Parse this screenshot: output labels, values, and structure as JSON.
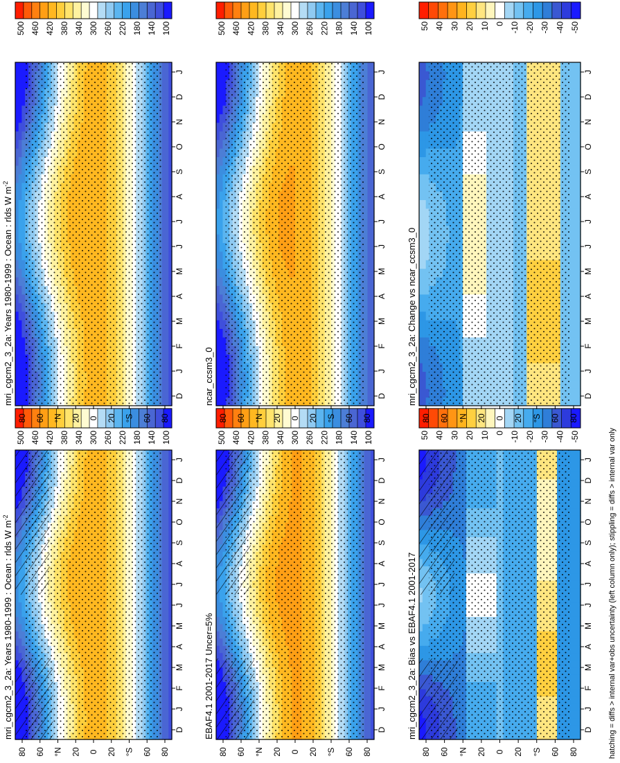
{
  "footer": "hatching = diffs > internal var+obs uncertainty (left column only); stippling = diffs > internal var only",
  "colors": {
    "abs_scale": [
      "#1a1aff",
      "#3f4fdc",
      "#4a66d3",
      "#4c7ed6",
      "#3b8ee0",
      "#3aa2ec",
      "#5bb5f0",
      "#8fcaf2",
      "#b4dcf5",
      "#ffffff",
      "#fffbd2",
      "#fff2a0",
      "#ffe46c",
      "#ffcf3c",
      "#ffb820",
      "#ff9f15",
      "#ff8010",
      "#ff5a08",
      "#ff1e00"
    ],
    "diff_scale": [
      "#1a1aff",
      "#2d3bdd",
      "#3a58d2",
      "#2f7ed8",
      "#2d97e6",
      "#46abee",
      "#73c2f2",
      "#a3d6f5",
      "#ffffff",
      "#fff6bd",
      "#ffe680",
      "#ffd040",
      "#ffb41e",
      "#ff9514",
      "#ff700c",
      "#ff4a06",
      "#ff1e00"
    ]
  },
  "chart_data": [
    {
      "id": "p1",
      "type": "heatmap",
      "title": "mri_cgcm2_3_2a: Years 1980-1999 : Ocean : rlds W m",
      "title_sup": "-2",
      "x_ticklabels": [
        "D",
        "J",
        "F",
        "M",
        "A",
        "M",
        "J",
        "J",
        "A",
        "S",
        "O",
        "N",
        "D",
        "J"
      ],
      "y_ticklabels": [
        "80",
        "60",
        "°N",
        "20",
        "0",
        "20",
        "°S",
        "60",
        "80"
      ],
      "colorbar_ticks": [
        "500",
        "460",
        "420",
        "380",
        "340",
        "300",
        "260",
        "220",
        "180",
        "140",
        "100"
      ],
      "vmin": 100,
      "vmax": 500,
      "hatching": true,
      "stippling": true
    },
    {
      "id": "p2",
      "type": "heatmap",
      "title": "mri_cgcm2_3_2a: Years 1980-1999 : Ocean : rlds W m",
      "title_sup": "-2",
      "x_ticklabels": [
        "D",
        "J",
        "F",
        "M",
        "A",
        "M",
        "J",
        "J",
        "A",
        "S",
        "O",
        "N",
        "D",
        "J"
      ],
      "y_ticklabels": [
        "80",
        "60",
        "°N",
        "20",
        "0",
        "20",
        "°S",
        "60",
        "80"
      ],
      "colorbar_ticks": [
        "500",
        "460",
        "420",
        "380",
        "340",
        "300",
        "260",
        "220",
        "180",
        "140",
        "100"
      ],
      "vmin": 100,
      "vmax": 500,
      "hatching": false,
      "stippling": true
    },
    {
      "id": "p3",
      "type": "heatmap",
      "title": "EBAF4.1 2001-2017 Uncer=5%",
      "title_sup": "",
      "x_ticklabels": [
        "D",
        "J",
        "F",
        "M",
        "A",
        "M",
        "J",
        "J",
        "A",
        "S",
        "O",
        "N",
        "D",
        "J"
      ],
      "y_ticklabels": [
        "80",
        "60",
        "°N",
        "20",
        "0",
        "20",
        "°S",
        "60",
        "80"
      ],
      "colorbar_ticks": [
        "500",
        "460",
        "420",
        "380",
        "340",
        "300",
        "260",
        "220",
        "180",
        "140",
        "100"
      ],
      "vmin": 100,
      "vmax": 500,
      "hatching": true,
      "stippling": true
    },
    {
      "id": "p4",
      "type": "heatmap",
      "title": "ncar_ccsm3_0",
      "title_sup": "",
      "x_ticklabels": [
        "D",
        "J",
        "F",
        "M",
        "A",
        "M",
        "J",
        "J",
        "A",
        "S",
        "O",
        "N",
        "D",
        "J"
      ],
      "y_ticklabels": [
        "80",
        "60",
        "°N",
        "20",
        "0",
        "20",
        "°S",
        "60",
        "80"
      ],
      "colorbar_ticks": [
        "500",
        "460",
        "420",
        "380",
        "340",
        "300",
        "260",
        "220",
        "180",
        "140",
        "100"
      ],
      "vmin": 100,
      "vmax": 500,
      "hatching": false,
      "stippling": true
    },
    {
      "id": "p5",
      "type": "heatmap",
      "title": "mri_cgcm2_3_2a: Bias vs EBAF4.1 2001-2017",
      "title_sup": "",
      "x_ticklabels": [
        "D",
        "J",
        "F",
        "M",
        "A",
        "M",
        "J",
        "J",
        "A",
        "S",
        "O",
        "N",
        "D",
        "J"
      ],
      "y_ticklabels": [
        "80",
        "60",
        "°N",
        "20",
        "0",
        "20",
        "°S",
        "60",
        "80"
      ],
      "colorbar_ticks": [
        "50",
        "40",
        "30",
        "20",
        "10",
        "0",
        "-10",
        "-20",
        "-30",
        "-40",
        "-50"
      ],
      "vmin": -55,
      "vmax": 55,
      "hatching": true,
      "stippling": true
    },
    {
      "id": "p6",
      "type": "heatmap",
      "title": "mri_cgcm2_3_2a: Change vs ncar_ccsm3_0",
      "title_sup": "",
      "x_ticklabels": [
        "D",
        "J",
        "F",
        "M",
        "A",
        "M",
        "J",
        "J",
        "A",
        "S",
        "O",
        "N",
        "D",
        "J"
      ],
      "y_ticklabels": [
        "80",
        "60",
        "°N",
        "20",
        "0",
        "20",
        "°S",
        "60",
        "80"
      ],
      "colorbar_ticks": [
        "50",
        "40",
        "30",
        "20",
        "10",
        "0",
        "-10",
        "-20",
        "-30",
        "-40",
        "-50"
      ],
      "vmin": -55,
      "vmax": 55,
      "hatching": false,
      "stippling": true
    }
  ]
}
